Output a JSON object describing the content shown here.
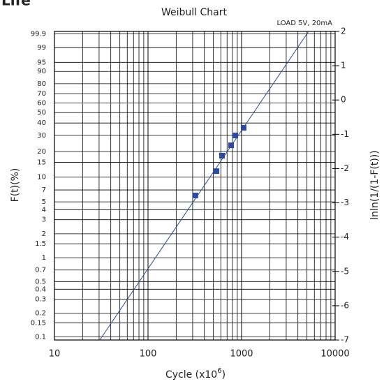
{
  "heading": "Life",
  "chart_data": {
    "type": "scatter",
    "title": "Weibull Chart",
    "annotation": "LOAD 5V, 20mA",
    "xlabel": [
      "Cycle (x10",
      "6",
      ")"
    ],
    "ylabel": "F(t)(%)",
    "y2label": "lnln(1/(1-F(t)))",
    "xscale": "log",
    "yscale": "weibull",
    "xlim": [
      10,
      10000
    ],
    "xticks": [
      10,
      100,
      1000,
      10000
    ],
    "ylim": [
      0.0912,
      99.938
    ],
    "yticks": [
      99.9,
      99,
      95,
      90,
      80,
      70,
      60,
      50,
      40,
      30,
      20,
      15,
      10,
      7,
      5,
      4,
      3,
      2,
      1.5,
      1,
      0.7,
      0.5,
      0.4,
      0.3,
      0.2,
      0.15,
      0.1
    ],
    "y2lim": [
      -7,
      2
    ],
    "y2ticks": [
      2,
      1,
      0,
      -1,
      -2,
      -3,
      -4,
      -5,
      -6,
      -7
    ],
    "grid": true,
    "series": [
      {
        "x": [
          321,
          539,
          618,
          773,
          857,
          1052
        ],
        "values": [
          6.0,
          11.8,
          17.9,
          23.4,
          29.9,
          35.9
        ],
        "color": "#2b4aa8"
      }
    ],
    "fit_line": {
      "x": [
        30.5,
        5200
      ],
      "values": [
        -7,
        2
      ],
      "axis": "y2",
      "color": "#2a4a9e"
    }
  }
}
